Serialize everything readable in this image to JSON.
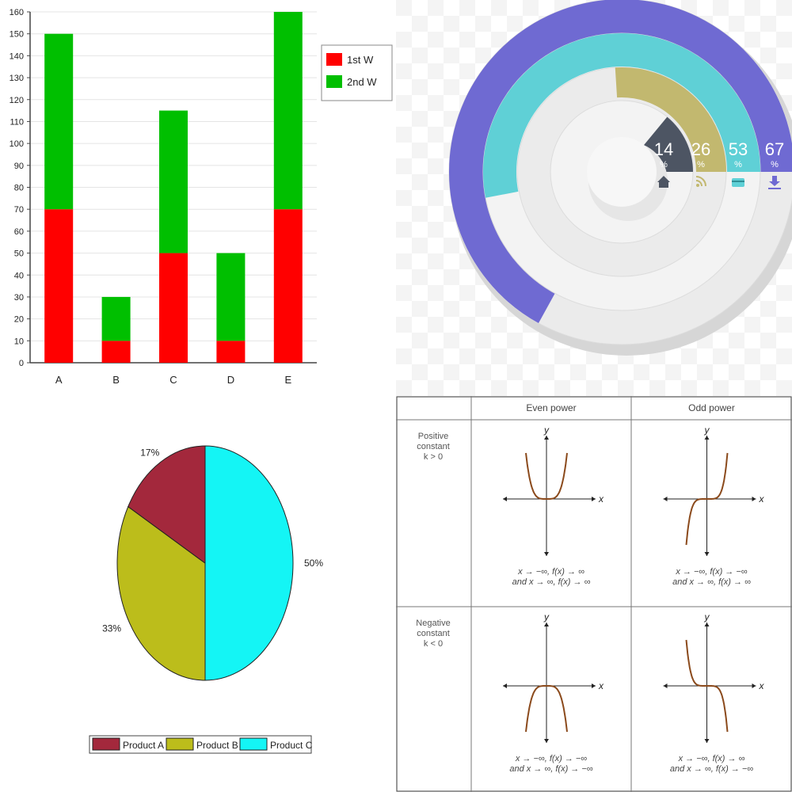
{
  "chart_data": [
    {
      "type": "bar",
      "stacked": true,
      "categories": [
        "A",
        "B",
        "C",
        "D",
        "E"
      ],
      "series": [
        {
          "name": "1st W",
          "color": "#ff0000",
          "values": [
            70,
            10,
            50,
            10,
            70
          ]
        },
        {
          "name": "2nd W",
          "color": "#00bf00",
          "values": [
            80,
            20,
            65,
            40,
            90
          ]
        }
      ],
      "ylim": [
        0,
        160
      ],
      "yticks": [
        0,
        10,
        20,
        30,
        40,
        50,
        60,
        70,
        80,
        90,
        100,
        110,
        120,
        130,
        140,
        150,
        160
      ],
      "grid": true,
      "legend": "top-right"
    },
    {
      "type": "pie",
      "style": "concentric-rings",
      "labels": [
        "14",
        "26",
        "53",
        "67"
      ],
      "values": [
        14,
        26,
        53,
        67
      ],
      "unit": "%",
      "colors": [
        "#4d5563",
        "#c2b86f",
        "#5fd0d6",
        "#6f6ad2"
      ],
      "icons": [
        "home-icon",
        "rss-icon",
        "card-icon",
        "download-icon"
      ]
    },
    {
      "type": "pie",
      "labels": [
        "Product A",
        "Product B",
        "Product C"
      ],
      "values": [
        17,
        33,
        50
      ],
      "value_labels": [
        "17%",
        "33%",
        "50%"
      ],
      "colors": [
        "#a3283c",
        "#bcbd1b",
        "#14f5f5"
      ],
      "legend": "bottom"
    },
    {
      "type": "table",
      "columns": [
        "",
        "Even power",
        "Odd power"
      ],
      "rows": [
        {
          "header_lines": [
            "Positive",
            "constant",
            "k > 0"
          ],
          "even": {
            "shape": "pos-even",
            "caption": [
              "x → −∞, f(x) → ∞",
              "and x → ∞, f(x) → ∞"
            ]
          },
          "odd": {
            "shape": "pos-odd",
            "caption": [
              "x → −∞, f(x) → −∞",
              "and x → ∞, f(x) → ∞"
            ]
          }
        },
        {
          "header_lines": [
            "Negative",
            "constant",
            "k < 0"
          ],
          "even": {
            "shape": "neg-even",
            "caption": [
              "x → −∞, f(x) → −∞",
              "and x → ∞, f(x) → −∞"
            ]
          },
          "odd": {
            "shape": "neg-odd",
            "caption": [
              "x → −∞, f(x) → ∞",
              "and x → ∞, f(x) → −∞"
            ]
          }
        }
      ],
      "axis_x": "x",
      "axis_y": "y"
    }
  ]
}
